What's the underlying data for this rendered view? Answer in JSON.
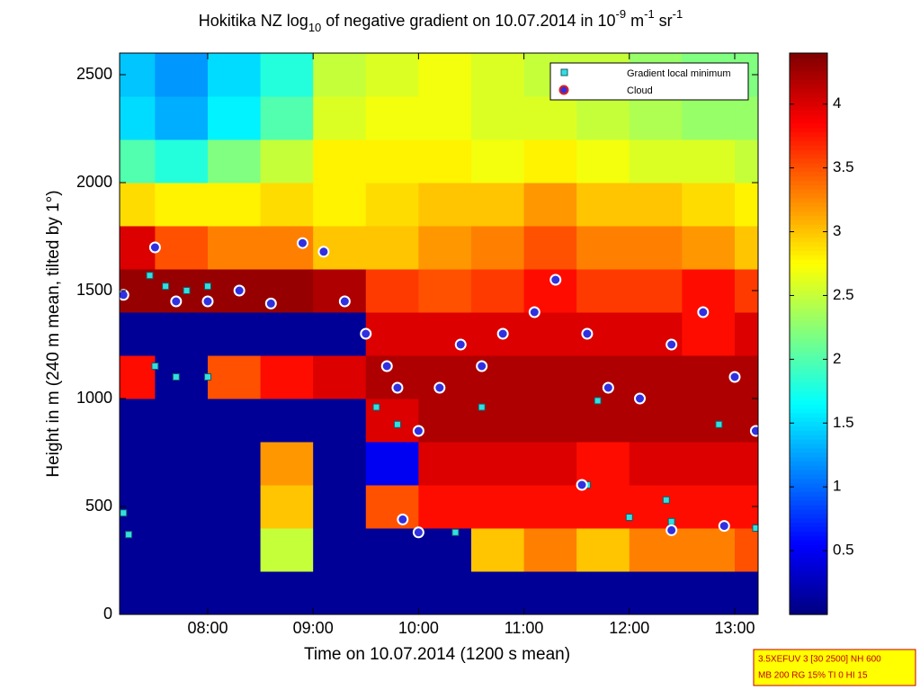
{
  "chart_data": {
    "type": "heatmap",
    "title_parts": [
      {
        "text": "Hokitika NZ log"
      },
      {
        "text": "10",
        "shift": "sub"
      },
      {
        "text": " of negative gradient on 10.07.2014 in 10"
      },
      {
        "text": "-9",
        "shift": "super"
      },
      {
        "text": " m"
      },
      {
        "text": "-1",
        "shift": "super"
      },
      {
        "text": " sr"
      },
      {
        "text": "-1",
        "shift": "super"
      }
    ],
    "x_label": "Time on 10.07.2014 (1200 s mean)",
    "y_label": "Height in m (240 m mean, tilted by 1°)",
    "xlim": [
      7.164,
      13.222
    ],
    "xticks": [
      {
        "value": 8,
        "label": "08:00"
      },
      {
        "value": 9,
        "label": "09:00"
      },
      {
        "value": 10,
        "label": "10:00"
      },
      {
        "value": 11,
        "label": "11:00"
      },
      {
        "value": 12,
        "label": "12:00"
      },
      {
        "value": 13,
        "label": "13:00"
      }
    ],
    "ylim": [
      0,
      2600
    ],
    "yticks": [
      0,
      500,
      1000,
      1500,
      2000,
      2500
    ],
    "clim": [
      0,
      4.4
    ],
    "cticks": [
      0.5,
      1,
      1.5,
      2,
      2.5,
      3,
      3.5,
      4
    ],
    "colormap": "jet",
    "grid": false,
    "x": [
      7.25,
      7.75,
      8.25,
      8.75,
      9.25,
      9.75,
      10.25,
      10.75,
      11.25,
      11.75,
      12.25,
      12.75,
      13.25
    ],
    "y": [
      100,
      300,
      500,
      700,
      900,
      1100,
      1300,
      1500,
      1700,
      1900,
      2100,
      2300,
      2500
    ],
    "z": [
      [
        0.1,
        0.1,
        0.1,
        0.1,
        0.1,
        0.1,
        0.1,
        0.1,
        0.1,
        0.1,
        0.1,
        0.1,
        0.1
      ],
      [
        0.1,
        0.1,
        0.1,
        2.5,
        0.1,
        0.1,
        0.1,
        3.0,
        3.3,
        3.0,
        3.3,
        3.3,
        3.5
      ],
      [
        0.1,
        0.1,
        0.1,
        3.0,
        0.1,
        3.5,
        3.8,
        3.8,
        3.8,
        3.8,
        3.8,
        3.8,
        3.8
      ],
      [
        0.1,
        0.1,
        0.1,
        3.2,
        0.1,
        0.5,
        4.0,
        4.0,
        4.0,
        3.8,
        4.0,
        4.0,
        4.0
      ],
      [
        0.1,
        0.1,
        0.1,
        0.1,
        0.1,
        4.0,
        4.2,
        4.2,
        4.2,
        4.2,
        4.2,
        4.2,
        4.2
      ],
      [
        3.8,
        0.1,
        3.5,
        3.8,
        4.0,
        4.2,
        4.2,
        4.2,
        4.2,
        4.2,
        4.2,
        4.2,
        4.2
      ],
      [
        0.1,
        0.1,
        0.1,
        0.1,
        0.1,
        4.0,
        4.0,
        4.0,
        4.0,
        4.0,
        4.0,
        3.8,
        4.0
      ],
      [
        4.3,
        4.3,
        4.3,
        4.3,
        4.2,
        3.6,
        3.5,
        3.6,
        3.8,
        3.6,
        3.6,
        3.8,
        3.6
      ],
      [
        4.0,
        3.5,
        3.3,
        3.3,
        3.0,
        3.0,
        3.2,
        3.3,
        3.5,
        3.3,
        3.3,
        3.2,
        3.0
      ],
      [
        2.9,
        2.8,
        2.8,
        2.9,
        2.8,
        2.9,
        3.0,
        3.0,
        3.2,
        3.0,
        3.0,
        2.9,
        2.8
      ],
      [
        2.0,
        1.8,
        2.2,
        2.5,
        2.8,
        2.8,
        2.8,
        2.7,
        2.8,
        2.7,
        2.6,
        2.6,
        2.5
      ],
      [
        1.5,
        1.3,
        1.6,
        2.0,
        2.6,
        2.7,
        2.7,
        2.6,
        2.6,
        2.5,
        2.4,
        2.3,
        2.3
      ],
      [
        1.4,
        1.2,
        1.5,
        1.8,
        2.5,
        2.6,
        2.7,
        2.6,
        2.5,
        2.5,
        2.3,
        2.2,
        2.2
      ]
    ],
    "series": [
      {
        "name": "Gradient local minimum",
        "color": "#30e0e0",
        "marker": "square",
        "x": [
          7.45,
          7.6,
          7.8,
          8.0,
          7.5,
          7.7,
          8.0,
          7.2,
          7.25,
          9.6,
          9.8,
          10.35,
          10.6,
          11.7,
          11.6,
          12.0,
          12.35,
          12.4,
          12.85,
          13.2
        ],
        "values": [
          1570,
          1520,
          1500,
          1520,
          1150,
          1100,
          1100,
          470,
          370,
          960,
          880,
          380,
          960,
          990,
          600,
          450,
          530,
          430,
          880,
          400
        ]
      },
      {
        "name": "Cloud",
        "color": "#3030e0",
        "marker": "circle",
        "x": [
          7.2,
          7.5,
          7.7,
          8.0,
          8.3,
          8.6,
          8.9,
          9.1,
          9.3,
          9.5,
          9.7,
          9.8,
          10.0,
          10.2,
          10.4,
          10.6,
          10.8,
          11.1,
          11.3,
          11.6,
          11.8,
          12.1,
          12.4,
          12.7,
          13.0,
          13.2,
          9.85,
          10.0,
          11.55,
          12.4,
          12.9
        ],
        "values": [
          1480,
          1700,
          1450,
          1450,
          1500,
          1440,
          1720,
          1680,
          1450,
          1300,
          1150,
          1050,
          850,
          1050,
          1250,
          1150,
          1300,
          1400,
          1550,
          1300,
          1050,
          1000,
          1250,
          1400,
          1100,
          850,
          440,
          380,
          600,
          390,
          410
        ]
      }
    ],
    "legend_position": "upper right",
    "info_lines": [
      "3.5XEFUV 3 [30 2500] NH 600",
      "MB 200 RG 15% TI 0 HI 15"
    ]
  }
}
